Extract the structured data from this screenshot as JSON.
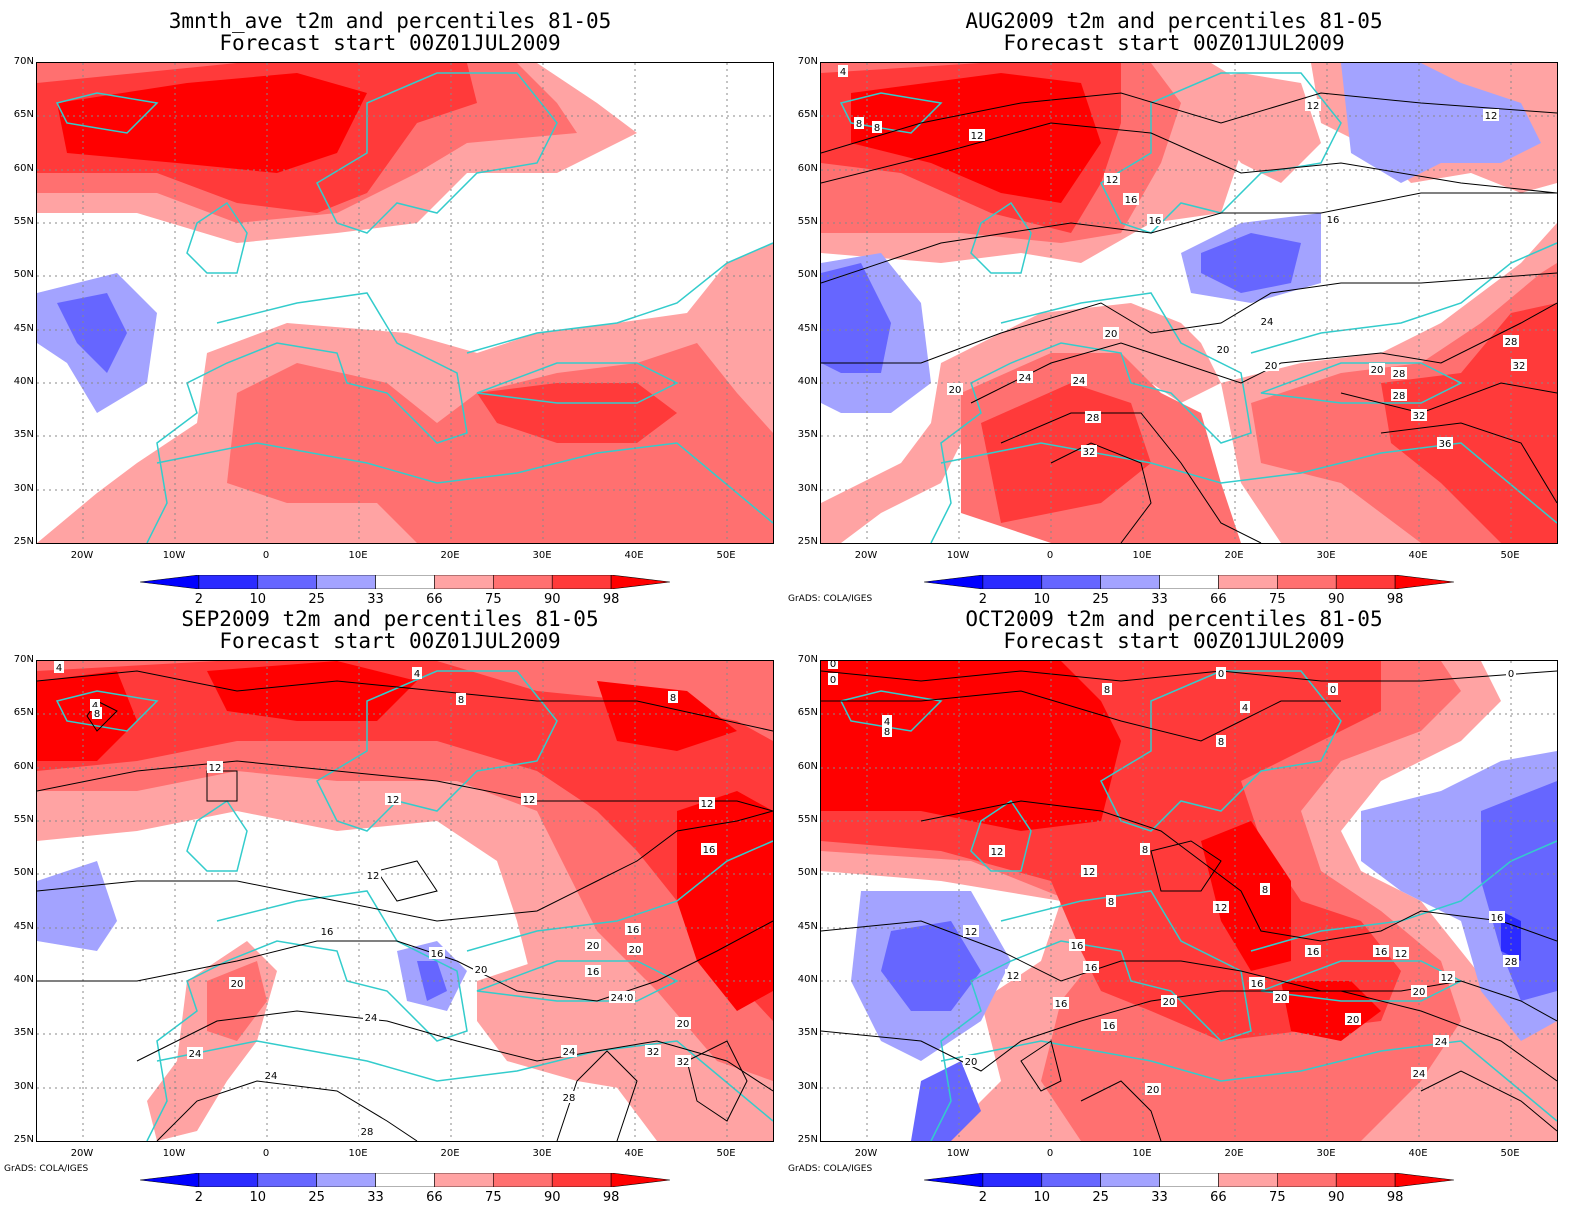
{
  "panels": [
    {
      "title_line1": "3mnth_ave t2m and percentiles 81-05",
      "title_line2": "Forecast start 00Z01JUL2009",
      "contours": []
    },
    {
      "title_line1": "AUG2009 t2m and percentiles 81-05",
      "title_line2": "Forecast start 00Z01JUL2009",
      "contours": [
        "4",
        "8",
        "8",
        "12",
        "12",
        "12",
        "12",
        "16",
        "16",
        "16",
        "20",
        "20",
        "20",
        "20",
        "20",
        "24",
        "24",
        "24",
        "28",
        "28",
        "28",
        "28",
        "32",
        "32",
        "32",
        "36"
      ]
    },
    {
      "title_line1": "SEP2009 t2m and percentiles 81-05",
      "title_line2": "Forecast start 00Z01JUL2009",
      "contours": [
        "4",
        "4",
        "4",
        "8",
        "8",
        "8",
        "12",
        "12",
        "12",
        "12",
        "12",
        "16",
        "16",
        "16",
        "16",
        "16",
        "20",
        "20",
        "20",
        "20",
        "20",
        "20",
        "24",
        "24",
        "24",
        "24",
        "24",
        "28",
        "28",
        "32",
        "32"
      ]
    },
    {
      "title_line1": "OCT2009 t2m and percentiles 81-05",
      "title_line2": "Forecast start 00Z01JUL2009",
      "contours": [
        "0",
        "0",
        "0",
        "0",
        "0",
        "4",
        "4",
        "8",
        "8",
        "8",
        "8",
        "8",
        "8",
        "12",
        "12",
        "12",
        "12",
        "12",
        "12",
        "12",
        "16",
        "16",
        "16",
        "16",
        "16",
        "16",
        "16",
        "16",
        "20",
        "20",
        "20",
        "20",
        "20",
        "20",
        "24",
        "24",
        "28"
      ]
    }
  ],
  "lat_ticks": [
    "70N",
    "65N",
    "60N",
    "55N",
    "50N",
    "45N",
    "40N",
    "35N",
    "30N",
    "25N"
  ],
  "lon_ticks": [
    "20W",
    "10W",
    "0",
    "10E",
    "20E",
    "30E",
    "40E",
    "50E"
  ],
  "colorbar": {
    "labels": [
      "2",
      "10",
      "25",
      "33",
      "66",
      "75",
      "90",
      "98"
    ],
    "colors": [
      "#0000ff",
      "#2b2bff",
      "#6666ff",
      "#a3a3ff",
      "#ffffff",
      "#ffa3a3",
      "#ff7070",
      "#ff3a3a",
      "#ff0000"
    ]
  },
  "credits": [
    "GrADS: COLA/IGES",
    "GrADS: COLA/IGES",
    "GrADS: COLA/IGES"
  ],
  "colors": {
    "coastline": "#33cccc",
    "contour": "#000000",
    "grid": "#888888"
  }
}
